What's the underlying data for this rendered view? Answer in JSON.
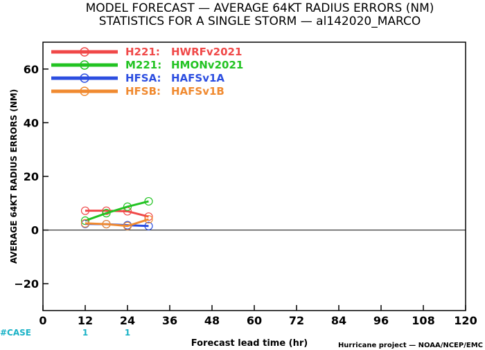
{
  "chart_data": {
    "type": "line",
    "title": "MODEL FORECAST — AVERAGE 64KT RADIUS ERRORS (NM)",
    "subtitle": "STATISTICS FOR A SINGLE STORM — al142020_MARCO",
    "xlabel": "Forecast lead time (hr)",
    "ylabel": "AVERAGE 64KT RADIUS ERRORS (NM)",
    "xlim": [
      0,
      120
    ],
    "ylim": [
      -30,
      70
    ],
    "xticks": [
      0,
      12,
      24,
      36,
      48,
      60,
      72,
      84,
      96,
      108,
      120
    ],
    "yticks": [
      -20,
      0,
      20,
      40,
      60
    ],
    "xtick_labels": [
      "0",
      "12",
      "24",
      "36",
      "48",
      "60",
      "72",
      "84",
      "96",
      "108",
      "120"
    ],
    "ytick_labels": [
      "−20",
      "0",
      "20",
      "40",
      "60"
    ],
    "legend_position": "top-left",
    "zero_line": true,
    "series": [
      {
        "name": "H221:",
        "label": "HWRFv2021",
        "color": "#f04848",
        "x": [
          12,
          18,
          24,
          30
        ],
        "y": [
          7.2,
          7.2,
          7.0,
          5.0
        ]
      },
      {
        "name": "M221:",
        "label": "HMONv2021",
        "color": "#22c322",
        "x": [
          12,
          18,
          24,
          30
        ],
        "y": [
          3.5,
          6.3,
          8.7,
          10.7
        ]
      },
      {
        "name": "HFSA:",
        "label": "HAFSv1A",
        "color": "#2c4ee0",
        "x": [
          12,
          18,
          24,
          30
        ],
        "y": [
          2.3,
          2.2,
          1.8,
          1.5
        ]
      },
      {
        "name": "HFSB:",
        "label": "HAFSv1B",
        "color": "#f08a30",
        "x": [
          12,
          18,
          24,
          30
        ],
        "y": [
          2.5,
          2.2,
          1.5,
          4.0
        ]
      }
    ],
    "cases": {
      "label": "#CASE",
      "x": [
        12,
        24
      ],
      "values": [
        "1",
        "1"
      ]
    },
    "credit": "Hurricane project — NOAA/NCEP/EMC"
  }
}
